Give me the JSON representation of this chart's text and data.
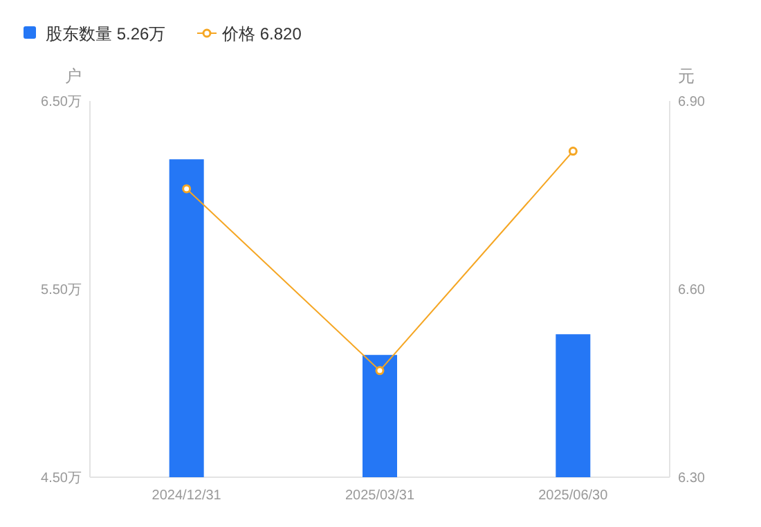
{
  "chart_data": {
    "type": "bar",
    "categories": [
      "2024/12/31",
      "2025/03/31",
      "2025/06/30"
    ],
    "ylabel": "户",
    "y2label": "元",
    "ylim": [
      4.5,
      6.5
    ],
    "yticks": [
      {
        "value": 4.5,
        "label": "4.50万"
      },
      {
        "value": 5.5,
        "label": "5.50万"
      },
      {
        "value": 6.5,
        "label": "6.50万"
      }
    ],
    "y2lim": [
      6.3,
      6.9
    ],
    "y2ticks": [
      {
        "value": 6.3,
        "label": "6.30"
      },
      {
        "value": 6.6,
        "label": "6.60"
      },
      {
        "value": 6.9,
        "label": "6.90"
      }
    ],
    "legend": "top left",
    "grid": false,
    "marker": "circle",
    "line_style": "solid",
    "series": [
      {
        "name": "股东数量 5.26万",
        "color": "#2577f5",
        "values": [
          6.19,
          5.15,
          5.26
        ]
      },
      {
        "name": "价格 6.820",
        "type": "line",
        "axis": "y2",
        "color": "#f5a623",
        "values": [
          6.76,
          6.47,
          6.82
        ]
      }
    ]
  }
}
